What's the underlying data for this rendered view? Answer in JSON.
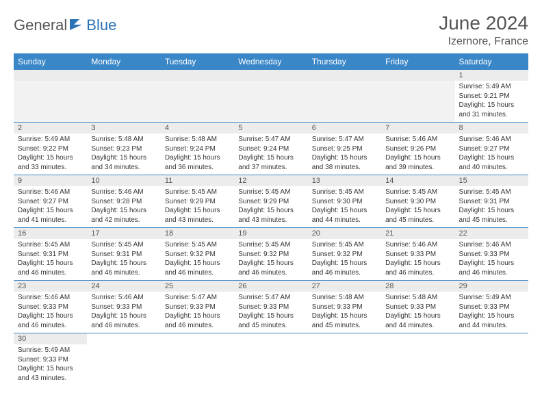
{
  "logo": {
    "part1": "General",
    "part2": "Blue"
  },
  "title": "June 2024",
  "location": "Izernore, France",
  "colors": {
    "header_bg": "#3a87c8",
    "header_fg": "#ffffff",
    "daynum_bg": "#ececec",
    "cell_border": "#3a87c8",
    "logo_gray": "#555555",
    "logo_blue": "#2a73b8"
  },
  "day_headers": [
    "Sunday",
    "Monday",
    "Tuesday",
    "Wednesday",
    "Thursday",
    "Friday",
    "Saturday"
  ],
  "weeks": [
    [
      null,
      null,
      null,
      null,
      null,
      null,
      {
        "n": "1",
        "sr": "Sunrise: 5:49 AM",
        "ss": "Sunset: 9:21 PM",
        "d1": "Daylight: 15 hours",
        "d2": "and 31 minutes."
      }
    ],
    [
      {
        "n": "2",
        "sr": "Sunrise: 5:49 AM",
        "ss": "Sunset: 9:22 PM",
        "d1": "Daylight: 15 hours",
        "d2": "and 33 minutes."
      },
      {
        "n": "3",
        "sr": "Sunrise: 5:48 AM",
        "ss": "Sunset: 9:23 PM",
        "d1": "Daylight: 15 hours",
        "d2": "and 34 minutes."
      },
      {
        "n": "4",
        "sr": "Sunrise: 5:48 AM",
        "ss": "Sunset: 9:24 PM",
        "d1": "Daylight: 15 hours",
        "d2": "and 36 minutes."
      },
      {
        "n": "5",
        "sr": "Sunrise: 5:47 AM",
        "ss": "Sunset: 9:24 PM",
        "d1": "Daylight: 15 hours",
        "d2": "and 37 minutes."
      },
      {
        "n": "6",
        "sr": "Sunrise: 5:47 AM",
        "ss": "Sunset: 9:25 PM",
        "d1": "Daylight: 15 hours",
        "d2": "and 38 minutes."
      },
      {
        "n": "7",
        "sr": "Sunrise: 5:46 AM",
        "ss": "Sunset: 9:26 PM",
        "d1": "Daylight: 15 hours",
        "d2": "and 39 minutes."
      },
      {
        "n": "8",
        "sr": "Sunrise: 5:46 AM",
        "ss": "Sunset: 9:27 PM",
        "d1": "Daylight: 15 hours",
        "d2": "and 40 minutes."
      }
    ],
    [
      {
        "n": "9",
        "sr": "Sunrise: 5:46 AM",
        "ss": "Sunset: 9:27 PM",
        "d1": "Daylight: 15 hours",
        "d2": "and 41 minutes."
      },
      {
        "n": "10",
        "sr": "Sunrise: 5:46 AM",
        "ss": "Sunset: 9:28 PM",
        "d1": "Daylight: 15 hours",
        "d2": "and 42 minutes."
      },
      {
        "n": "11",
        "sr": "Sunrise: 5:45 AM",
        "ss": "Sunset: 9:29 PM",
        "d1": "Daylight: 15 hours",
        "d2": "and 43 minutes."
      },
      {
        "n": "12",
        "sr": "Sunrise: 5:45 AM",
        "ss": "Sunset: 9:29 PM",
        "d1": "Daylight: 15 hours",
        "d2": "and 43 minutes."
      },
      {
        "n": "13",
        "sr": "Sunrise: 5:45 AM",
        "ss": "Sunset: 9:30 PM",
        "d1": "Daylight: 15 hours",
        "d2": "and 44 minutes."
      },
      {
        "n": "14",
        "sr": "Sunrise: 5:45 AM",
        "ss": "Sunset: 9:30 PM",
        "d1": "Daylight: 15 hours",
        "d2": "and 45 minutes."
      },
      {
        "n": "15",
        "sr": "Sunrise: 5:45 AM",
        "ss": "Sunset: 9:31 PM",
        "d1": "Daylight: 15 hours",
        "d2": "and 45 minutes."
      }
    ],
    [
      {
        "n": "16",
        "sr": "Sunrise: 5:45 AM",
        "ss": "Sunset: 9:31 PM",
        "d1": "Daylight: 15 hours",
        "d2": "and 46 minutes."
      },
      {
        "n": "17",
        "sr": "Sunrise: 5:45 AM",
        "ss": "Sunset: 9:31 PM",
        "d1": "Daylight: 15 hours",
        "d2": "and 46 minutes."
      },
      {
        "n": "18",
        "sr": "Sunrise: 5:45 AM",
        "ss": "Sunset: 9:32 PM",
        "d1": "Daylight: 15 hours",
        "d2": "and 46 minutes."
      },
      {
        "n": "19",
        "sr": "Sunrise: 5:45 AM",
        "ss": "Sunset: 9:32 PM",
        "d1": "Daylight: 15 hours",
        "d2": "and 46 minutes."
      },
      {
        "n": "20",
        "sr": "Sunrise: 5:45 AM",
        "ss": "Sunset: 9:32 PM",
        "d1": "Daylight: 15 hours",
        "d2": "and 46 minutes."
      },
      {
        "n": "21",
        "sr": "Sunrise: 5:46 AM",
        "ss": "Sunset: 9:33 PM",
        "d1": "Daylight: 15 hours",
        "d2": "and 46 minutes."
      },
      {
        "n": "22",
        "sr": "Sunrise: 5:46 AM",
        "ss": "Sunset: 9:33 PM",
        "d1": "Daylight: 15 hours",
        "d2": "and 46 minutes."
      }
    ],
    [
      {
        "n": "23",
        "sr": "Sunrise: 5:46 AM",
        "ss": "Sunset: 9:33 PM",
        "d1": "Daylight: 15 hours",
        "d2": "and 46 minutes."
      },
      {
        "n": "24",
        "sr": "Sunrise: 5:46 AM",
        "ss": "Sunset: 9:33 PM",
        "d1": "Daylight: 15 hours",
        "d2": "and 46 minutes."
      },
      {
        "n": "25",
        "sr": "Sunrise: 5:47 AM",
        "ss": "Sunset: 9:33 PM",
        "d1": "Daylight: 15 hours",
        "d2": "and 46 minutes."
      },
      {
        "n": "26",
        "sr": "Sunrise: 5:47 AM",
        "ss": "Sunset: 9:33 PM",
        "d1": "Daylight: 15 hours",
        "d2": "and 45 minutes."
      },
      {
        "n": "27",
        "sr": "Sunrise: 5:48 AM",
        "ss": "Sunset: 9:33 PM",
        "d1": "Daylight: 15 hours",
        "d2": "and 45 minutes."
      },
      {
        "n": "28",
        "sr": "Sunrise: 5:48 AM",
        "ss": "Sunset: 9:33 PM",
        "d1": "Daylight: 15 hours",
        "d2": "and 44 minutes."
      },
      {
        "n": "29",
        "sr": "Sunrise: 5:49 AM",
        "ss": "Sunset: 9:33 PM",
        "d1": "Daylight: 15 hours",
        "d2": "and 44 minutes."
      }
    ],
    [
      {
        "n": "30",
        "sr": "Sunrise: 5:49 AM",
        "ss": "Sunset: 9:33 PM",
        "d1": "Daylight: 15 hours",
        "d2": "and 43 minutes."
      },
      null,
      null,
      null,
      null,
      null,
      null
    ]
  ]
}
